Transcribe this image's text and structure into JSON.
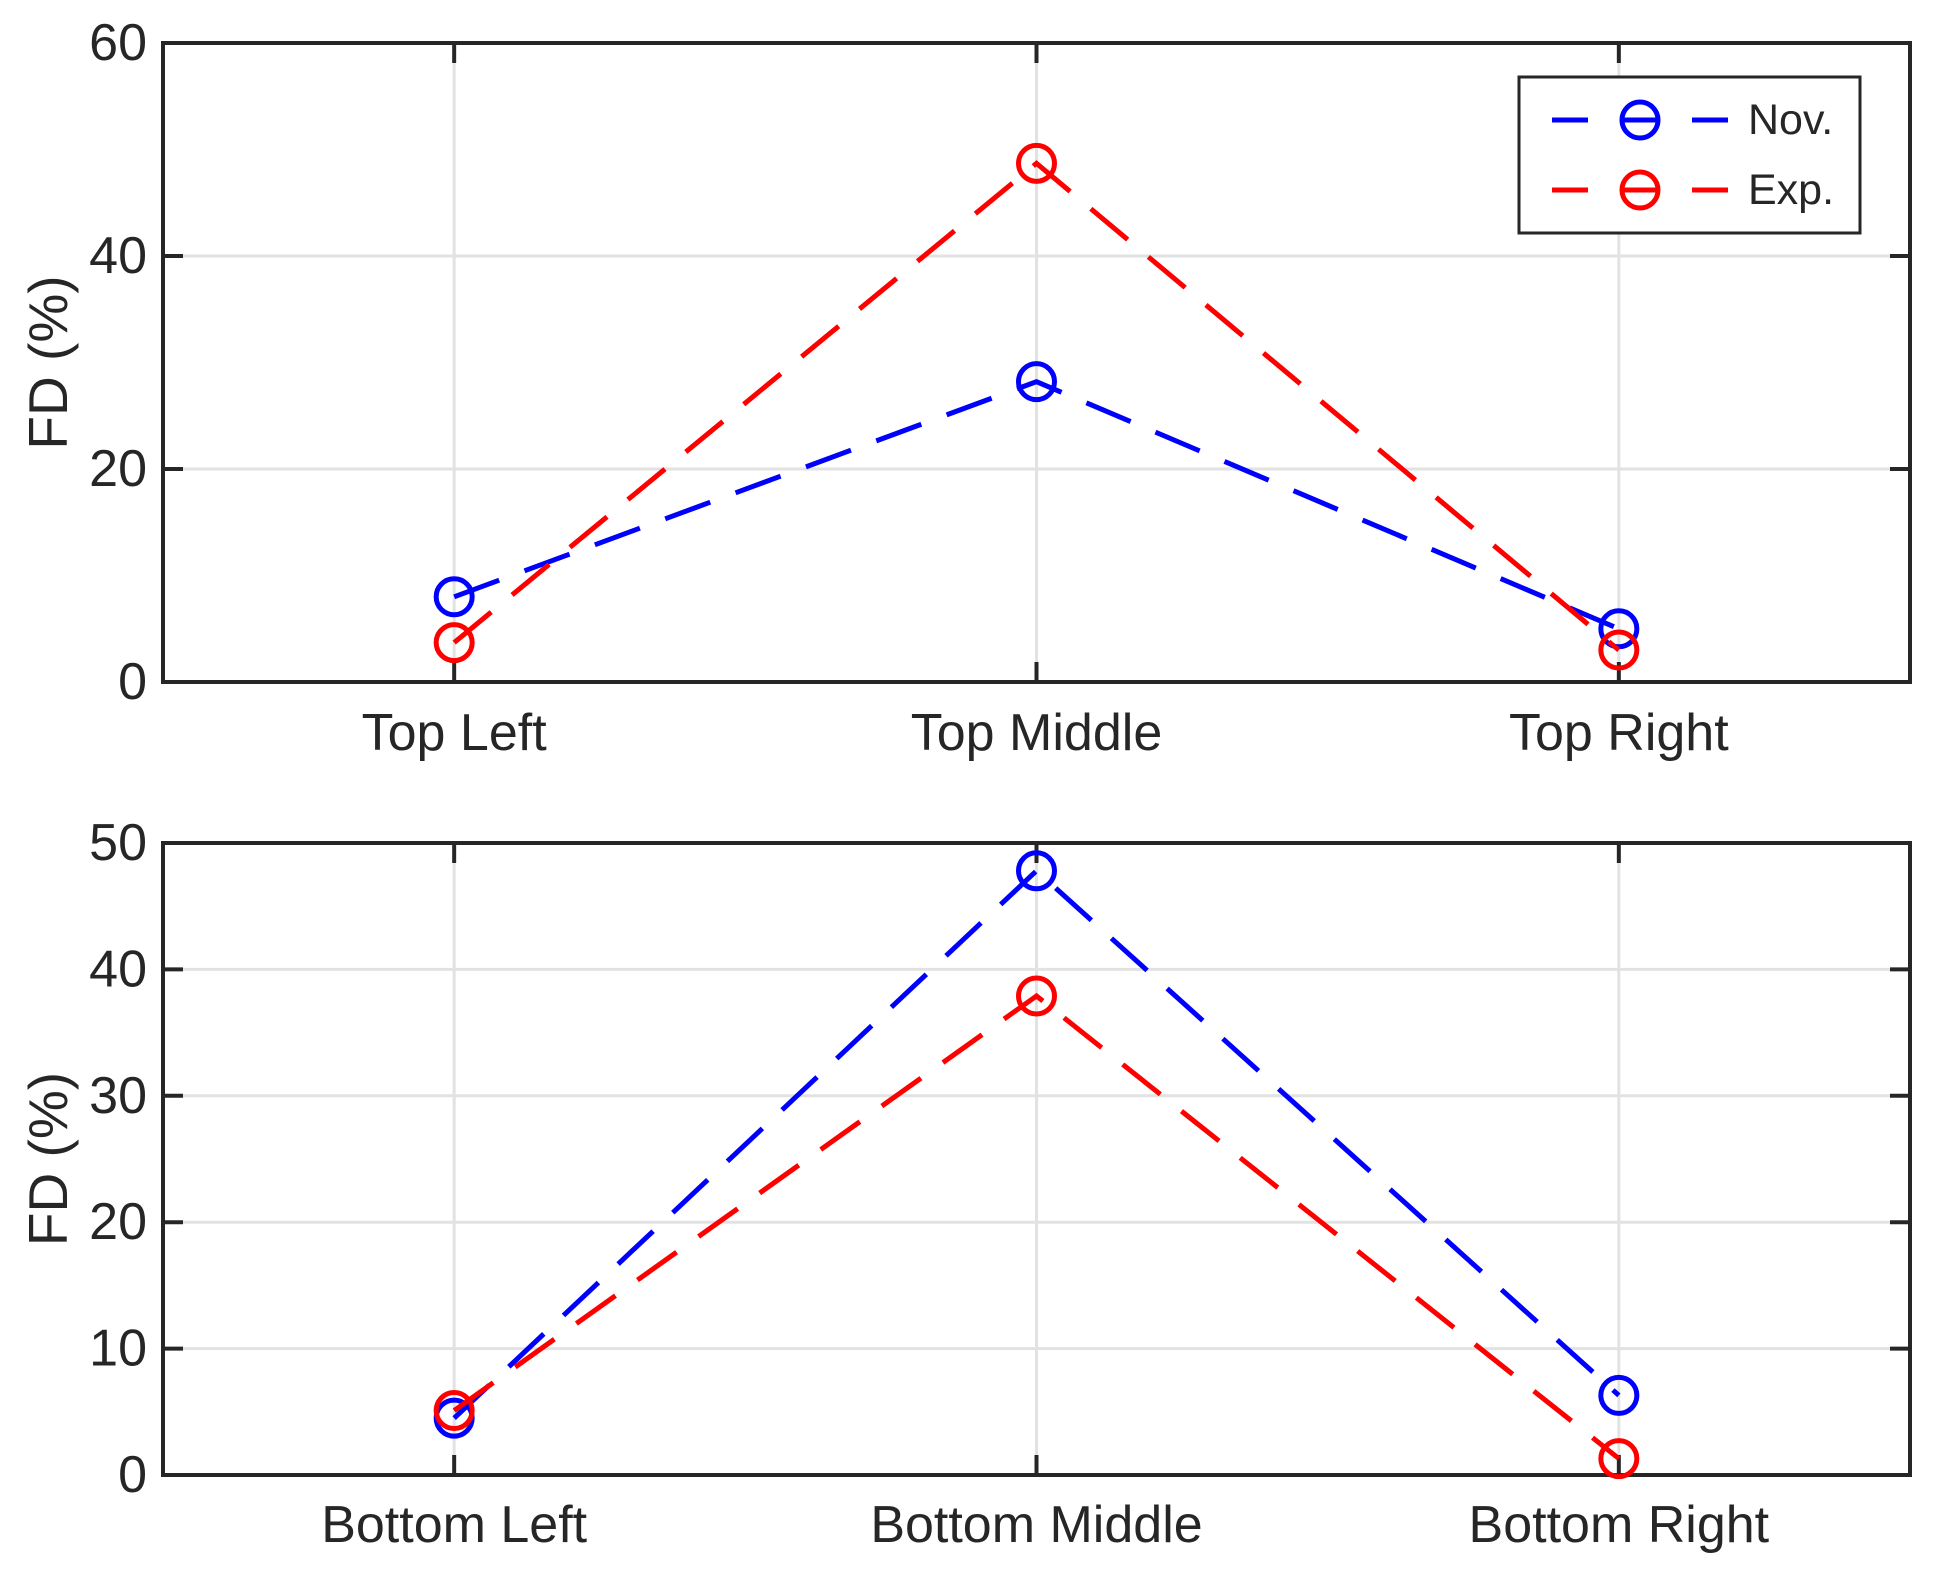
{
  "figure": {
    "background": "#FFFFFF",
    "axis_color": "#262626",
    "grid_color": "#E2E2E2",
    "text_color": "#262626",
    "nov_color": "#0000FF",
    "exp_color": "#FF0000"
  },
  "chart_data": [
    {
      "type": "line",
      "title": "",
      "categories": [
        "Top Left",
        "Top Middle",
        "Top Right"
      ],
      "series": [
        {
          "name": "Nov.",
          "color": "#0000FF",
          "values": [
            8,
            28.2,
            5
          ]
        },
        {
          "name": "Exp.",
          "color": "#FF0000",
          "values": [
            3.7,
            48.7,
            3
          ]
        }
      ],
      "xlabel": "",
      "ylabel": "FD (%)",
      "ylim": [
        0,
        60
      ],
      "yticks": [
        0,
        20,
        40,
        60
      ],
      "grid": true,
      "line_style": "dashed",
      "marker": "circle",
      "legend": {
        "position": "top-right",
        "entries": [
          "Nov.",
          "Exp."
        ]
      }
    },
    {
      "type": "line",
      "title": "",
      "categories": [
        "Bottom Left",
        "Bottom Middle",
        "Bottom Right"
      ],
      "series": [
        {
          "name": "Nov.",
          "color": "#0000FF",
          "values": [
            4.5,
            47.8,
            6.3
          ]
        },
        {
          "name": "Exp.",
          "color": "#FF0000",
          "values": [
            5.1,
            37.9,
            1.3
          ]
        }
      ],
      "xlabel": "",
      "ylabel": "FD (%)",
      "ylim": [
        0,
        50
      ],
      "yticks": [
        0,
        10,
        20,
        30,
        40,
        50
      ],
      "grid": true,
      "line_style": "dashed",
      "marker": "circle",
      "legend": null
    }
  ]
}
